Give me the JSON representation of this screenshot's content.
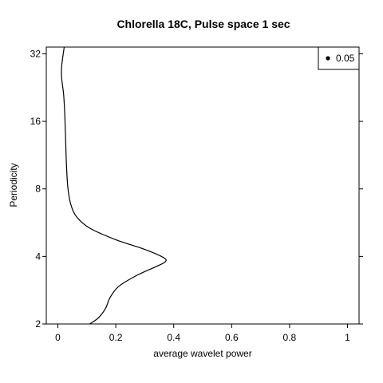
{
  "chart_data": {
    "type": "line",
    "title": "Chlorella 18C, Pulse space 1 sec",
    "xlabel": "average wavelet power",
    "ylabel": "Periodicity",
    "xlim": [
      -0.04,
      1.04
    ],
    "ylim": [
      2,
      34.3
    ],
    "y_scale": "log2",
    "x_ticks": [
      0,
      0.2,
      0.4,
      0.6,
      0.8,
      1
    ],
    "x_tick_labels": [
      "0",
      "0.2",
      "0.4",
      "0.6",
      "0.8",
      "1"
    ],
    "y_ticks": [
      2,
      4,
      8,
      16,
      32
    ],
    "y_tick_labels": [
      "2",
      "4",
      "8",
      "16",
      "32"
    ],
    "legend": {
      "position": "top-right",
      "label": "0.05",
      "marker": "filled-circle"
    },
    "grid": false,
    "series": [
      {
        "color": "#000000",
        "points": [
          {
            "x": 0.11,
            "y": 2.0
          },
          {
            "x": 0.14,
            "y": 2.13
          },
          {
            "x": 0.165,
            "y": 2.35
          },
          {
            "x": 0.18,
            "y": 2.62
          },
          {
            "x": 0.21,
            "y": 2.94
          },
          {
            "x": 0.27,
            "y": 3.28
          },
          {
            "x": 0.33,
            "y": 3.56
          },
          {
            "x": 0.37,
            "y": 3.78
          },
          {
            "x": 0.365,
            "y": 3.95
          },
          {
            "x": 0.3,
            "y": 4.3
          },
          {
            "x": 0.2,
            "y": 4.75
          },
          {
            "x": 0.11,
            "y": 5.35
          },
          {
            "x": 0.065,
            "y": 6.0
          },
          {
            "x": 0.045,
            "y": 6.8
          },
          {
            "x": 0.035,
            "y": 8.0
          },
          {
            "x": 0.03,
            "y": 10.0
          },
          {
            "x": 0.027,
            "y": 13.0
          },
          {
            "x": 0.024,
            "y": 17.0
          },
          {
            "x": 0.02,
            "y": 21.0
          },
          {
            "x": 0.013,
            "y": 25.0
          },
          {
            "x": 0.013,
            "y": 28.0
          },
          {
            "x": 0.017,
            "y": 31.0
          },
          {
            "x": 0.022,
            "y": 34.3
          }
        ]
      }
    ]
  }
}
